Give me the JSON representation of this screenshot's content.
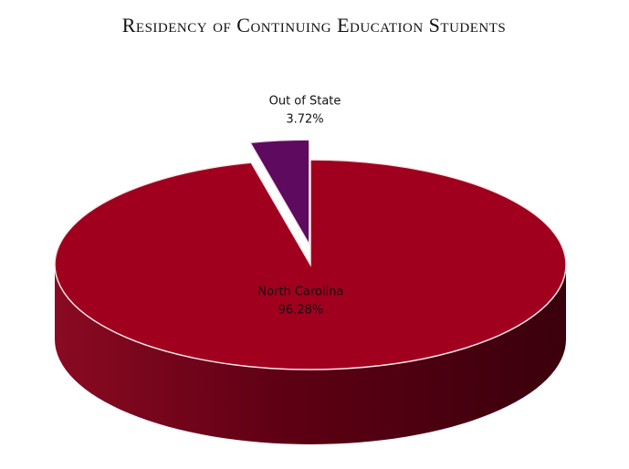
{
  "chart_data": {
    "type": "pie3d",
    "title": "Residency of Continuing Education Students",
    "categories": [
      "North Carolina",
      "Out of State"
    ],
    "values": [
      96.28,
      3.72
    ],
    "value_labels": [
      "96.28%",
      "3.72%"
    ],
    "colors": [
      "#a0001e",
      "#5e0a5e"
    ]
  }
}
